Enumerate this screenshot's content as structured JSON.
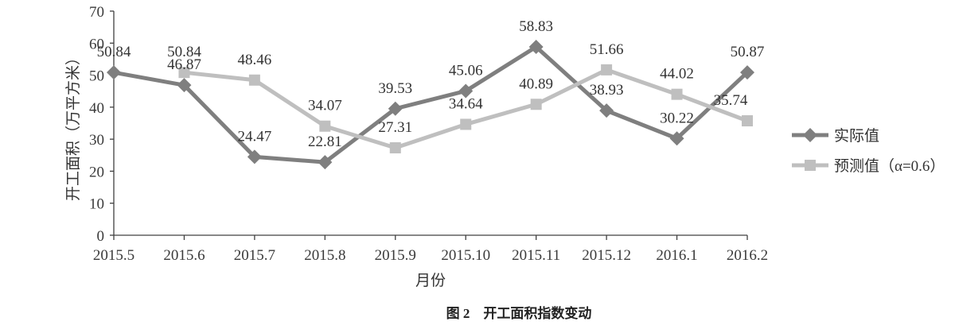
{
  "chart_data": {
    "type": "line",
    "categories": [
      "2015.5",
      "2015.6",
      "2015.7",
      "2015.8",
      "2015.9",
      "2015.10",
      "2015.11",
      "2015.12",
      "2016.1",
      "2016.2"
    ],
    "series": [
      {
        "name": "实际值",
        "values": [
          50.84,
          46.87,
          24.47,
          22.81,
          39.53,
          45.06,
          58.83,
          38.93,
          30.22,
          50.87
        ],
        "color": "#7f7f7f",
        "marker": "diamond"
      },
      {
        "name": "预测值（α=0.6）",
        "values": [
          null,
          50.84,
          48.46,
          34.07,
          27.31,
          34.64,
          40.89,
          51.66,
          44.02,
          35.74
        ],
        "color": "#bfbfbf",
        "marker": "square"
      }
    ],
    "xlabel": "月份",
    "ylabel": "开工面积（万平方米）",
    "caption": "图 2　开工面积指数变动",
    "ylim": [
      0,
      70
    ],
    "yticks": [
      0,
      10,
      20,
      30,
      40,
      50,
      60,
      70
    ],
    "grid": false,
    "legend": "right",
    "data_labels": true
  }
}
